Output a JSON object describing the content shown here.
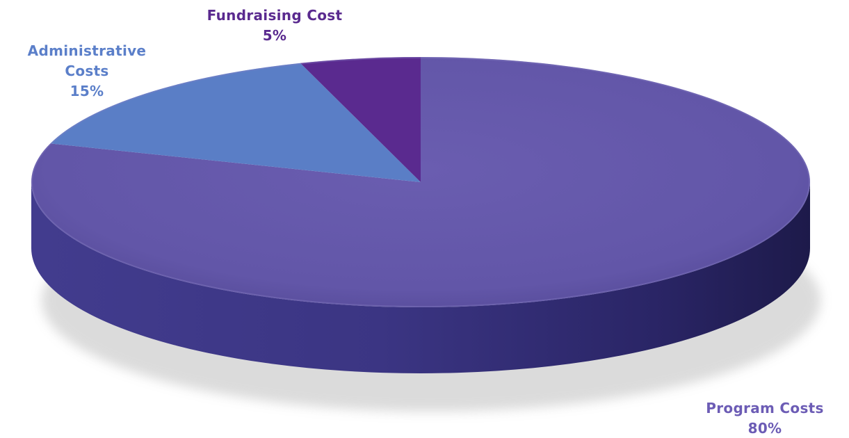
{
  "chart_data": {
    "type": "pie",
    "style": "3d",
    "slices": [
      {
        "label": "Program Costs",
        "value": 80,
        "value_label": "80%",
        "color": "#6558a8",
        "label_color": "#6c5cb5"
      },
      {
        "label": "Administrative Costs",
        "value": 15,
        "value_label": "15%",
        "color": "#5a7ec6",
        "label_color": "#5b7fc9"
      },
      {
        "label": "Fundraising Cost",
        "value": 5,
        "value_label": "5%",
        "color": "#5a2a8f",
        "label_color": "#5a2a8f"
      }
    ]
  },
  "labels": {
    "fundraising": {
      "name": "Fundraising Cost",
      "pct": "5%"
    },
    "admin": {
      "line1": "Administrative",
      "line2": "Costs",
      "pct": "15%"
    },
    "program": {
      "name": "Program Costs",
      "pct": "80%"
    }
  }
}
